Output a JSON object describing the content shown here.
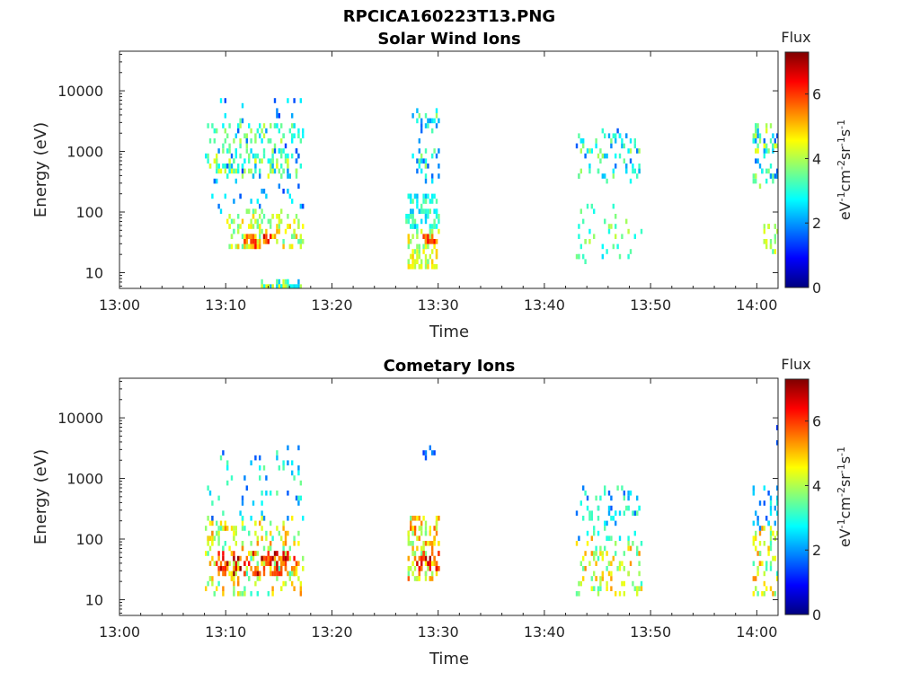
{
  "figure": {
    "title": "RPCICA160223T13.PNG"
  },
  "chart_data": [
    {
      "type": "heatmap",
      "title": "Solar Wind Ions",
      "xlabel": "Time",
      "ylabel": "Energy (eV)",
      "x_ticks": [
        "13:00",
        "13:10",
        "13:20",
        "13:30",
        "13:40",
        "13:50",
        "14:00"
      ],
      "x_range": [
        "13:00",
        "14:02"
      ],
      "y_scale": "log",
      "y_ticks": [
        "10",
        "100",
        "1000",
        "10000"
      ],
      "y_range": [
        5.5,
        45000
      ],
      "colorbar": {
        "title": "Flux",
        "label": "eV-1cm-2sr-1s-1",
        "ticks": [
          "0",
          "2",
          "4",
          "6"
        ],
        "range": [
          0,
          7.3
        ],
        "colormap": "jet"
      },
      "blobs": [
        {
          "t": [
            13.0,
            17.2
          ],
          "e": [
            3.0,
            6.8
          ],
          "n": 180,
          "fmin": 2.0,
          "fmax": 4.6,
          "seed": 11
        },
        {
          "t": [
            10.0,
            17.2
          ],
          "e": [
            25,
            110
          ],
          "n": 110,
          "fmin": 3.3,
          "fmax": 5.2,
          "seed": 12
        },
        {
          "t": [
            11.5,
            14.5
          ],
          "e": [
            28,
            42
          ],
          "n": 28,
          "fmin": 5.0,
          "fmax": 6.8,
          "seed": 13
        },
        {
          "t": [
            8.2,
            17.2
          ],
          "e": [
            1000,
            3000
          ],
          "n": 70,
          "fmin": 2.6,
          "fmax": 4.2,
          "seed": 14
        },
        {
          "t": [
            8.0,
            17.2
          ],
          "e": [
            400,
            900
          ],
          "n": 90,
          "fmin": 2.6,
          "fmax": 4.5,
          "seed": 15
        },
        {
          "t": [
            8.0,
            17.2
          ],
          "e": [
            100,
            8000
          ],
          "n": 70,
          "fmin": 1.3,
          "fmax": 2.8,
          "seed": 16
        },
        {
          "t": [
            27.0,
            30.0
          ],
          "e": [
            12,
            50
          ],
          "n": 70,
          "fmin": 3.4,
          "fmax": 5.0,
          "seed": 17
        },
        {
          "t": [
            28.5,
            30.0
          ],
          "e": [
            28,
            42
          ],
          "n": 14,
          "fmin": 5.0,
          "fmax": 6.5,
          "seed": 18
        },
        {
          "t": [
            27.0,
            30.0
          ],
          "e": [
            50,
            200
          ],
          "n": 70,
          "fmin": 2.2,
          "fmax": 3.6,
          "seed": 19
        },
        {
          "t": [
            27.5,
            30.0
          ],
          "e": [
            300,
            5000
          ],
          "n": 45,
          "fmin": 1.5,
          "fmax": 4.0,
          "seed": 20
        },
        {
          "t": [
            43.0,
            49.0
          ],
          "e": [
            300,
            2500
          ],
          "n": 70,
          "fmin": 1.5,
          "fmax": 4.2,
          "seed": 21
        },
        {
          "t": [
            43.0,
            49.0
          ],
          "e": [
            15,
            150
          ],
          "n": 40,
          "fmin": 2.5,
          "fmax": 4.3,
          "seed": 22
        },
        {
          "t": [
            59.5,
            62.0
          ],
          "e": [
            250,
            3000
          ],
          "n": 60,
          "fmin": 1.5,
          "fmax": 4.5,
          "seed": 23
        },
        {
          "t": [
            60.5,
            62.0
          ],
          "e": [
            20,
            60
          ],
          "n": 20,
          "fmin": 3.0,
          "fmax": 4.6,
          "seed": 24
        }
      ]
    },
    {
      "type": "heatmap",
      "title": "Cometary Ions",
      "xlabel": "Time",
      "ylabel": "Energy (eV)",
      "x_ticks": [
        "13:00",
        "13:10",
        "13:20",
        "13:30",
        "13:40",
        "13:50",
        "14:00"
      ],
      "x_range": [
        "13:00",
        "14:02"
      ],
      "y_scale": "log",
      "y_ticks": [
        "10",
        "100",
        "1000",
        "10000"
      ],
      "y_range": [
        5.5,
        45000
      ],
      "colorbar": {
        "title": "Flux",
        "label": "eV-1cm-2sr-1s-1",
        "ticks": [
          "0",
          "2",
          "4",
          "6"
        ],
        "range": [
          0,
          7.3
        ],
        "colormap": "jet"
      },
      "blobs": [
        {
          "t": [
            8.0,
            17.2
          ],
          "e": [
            12,
            220
          ],
          "n": 220,
          "fmin": 3.0,
          "fmax": 5.5,
          "seed": 31
        },
        {
          "t": [
            9.0,
            16.5
          ],
          "e": [
            25,
            60
          ],
          "n": 90,
          "fmin": 5.0,
          "fmax": 7.2,
          "seed": 32
        },
        {
          "t": [
            8.0,
            17.2
          ],
          "e": [
            200,
            3000
          ],
          "n": 55,
          "fmin": 1.5,
          "fmax": 3.6,
          "seed": 33
        },
        {
          "t": [
            27.0,
            30.0
          ],
          "e": [
            20,
            250
          ],
          "n": 110,
          "fmin": 3.5,
          "fmax": 5.8,
          "seed": 34
        },
        {
          "t": [
            28.0,
            30.0
          ],
          "e": [
            30,
            60
          ],
          "n": 30,
          "fmin": 5.5,
          "fmax": 7.2,
          "seed": 35
        },
        {
          "t": [
            28.5,
            29.5
          ],
          "e": [
            1500,
            3000
          ],
          "n": 6,
          "fmin": 1.2,
          "fmax": 2.0,
          "seed": 36
        },
        {
          "t": [
            43.0,
            49.0
          ],
          "e": [
            12,
            100
          ],
          "n": 90,
          "fmin": 3.0,
          "fmax": 5.5,
          "seed": 37
        },
        {
          "t": [
            43.0,
            49.0
          ],
          "e": [
            100,
            800
          ],
          "n": 60,
          "fmin": 1.5,
          "fmax": 3.5,
          "seed": 38
        },
        {
          "t": [
            59.5,
            62.0
          ],
          "e": [
            12,
            150
          ],
          "n": 60,
          "fmin": 3.0,
          "fmax": 5.5,
          "seed": 39
        },
        {
          "t": [
            59.5,
            62.0
          ],
          "e": [
            150,
            800
          ],
          "n": 25,
          "fmin": 1.5,
          "fmax": 3.0,
          "seed": 40
        },
        {
          "t": [
            61.5,
            62.0
          ],
          "e": [
            2000,
            8000
          ],
          "n": 4,
          "fmin": 1.0,
          "fmax": 1.8,
          "seed": 41
        }
      ]
    }
  ]
}
